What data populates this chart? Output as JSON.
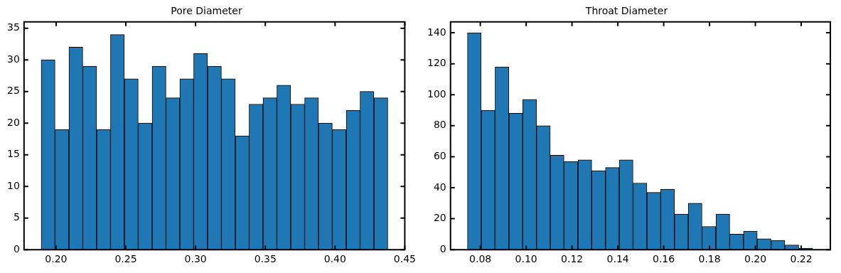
{
  "chart_data": [
    {
      "type": "histogram",
      "title": "Pore Diameter",
      "color": "#1f77b4",
      "bins": [
        0.1893,
        0.1992,
        0.2092,
        0.2191,
        0.2291,
        0.239,
        0.2489,
        0.2589,
        0.2688,
        0.2788,
        0.2887,
        0.2986,
        0.3086,
        0.3185,
        0.3285,
        0.3384,
        0.3483,
        0.3583,
        0.3682,
        0.3782,
        0.3881,
        0.398,
        0.408,
        0.4179,
        0.4279,
        0.4378
      ],
      "values": [
        30,
        19,
        32,
        29,
        19,
        34,
        27,
        20,
        29,
        24,
        27,
        31,
        29,
        27,
        18,
        23,
        24,
        26,
        23,
        24,
        20,
        19,
        22,
        25,
        24
      ],
      "xlim": [
        0.177,
        0.45
      ],
      "xticks": [
        {
          "value": 0.2,
          "label": "0.20"
        },
        0.25,
        {
          "value": 0.3,
          "label": "0.30"
        },
        0.35,
        {
          "value": 0.4,
          "label": "0.40"
        },
        0.45
      ],
      "ylim": [
        0,
        36
      ],
      "yticks": [
        0,
        5,
        10,
        15,
        20,
        25,
        30,
        35
      ]
    },
    {
      "type": "histogram",
      "title": "Throat Diameter",
      "color": "#1f77b4",
      "bins": [
        0.0744,
        0.0804,
        0.0864,
        0.0925,
        0.0985,
        0.1045,
        0.1105,
        0.1165,
        0.1226,
        0.1286,
        0.1346,
        0.1406,
        0.1466,
        0.1527,
        0.1587,
        0.1647,
        0.1707,
        0.1767,
        0.1828,
        0.1888,
        0.1948,
        0.2008,
        0.2068,
        0.2129,
        0.2189,
        0.2249
      ],
      "values": [
        140,
        90,
        118,
        88,
        97,
        80,
        61,
        57,
        58,
        51,
        53,
        58,
        43,
        37,
        39,
        23,
        30,
        15,
        23,
        10,
        12,
        7,
        6,
        3,
        1
      ],
      "xlim": [
        0.067,
        0.2327
      ],
      "xticks": [
        {
          "value": 0.08,
          "label": "0.08"
        },
        {
          "value": 0.1,
          "label": "0.10"
        },
        {
          "value": 0.12,
          "label": "0.12"
        },
        {
          "value": 0.14,
          "label": "0.14"
        },
        {
          "value": 0.16,
          "label": "0.16"
        },
        {
          "value": 0.18,
          "label": "0.18"
        },
        {
          "value": 0.2,
          "label": "0.20"
        },
        {
          "value": 0.22,
          "label": "0.22"
        }
      ],
      "ylim": [
        0,
        147
      ],
      "yticks": [
        0,
        20,
        40,
        60,
        80,
        100,
        120,
        140
      ]
    }
  ]
}
